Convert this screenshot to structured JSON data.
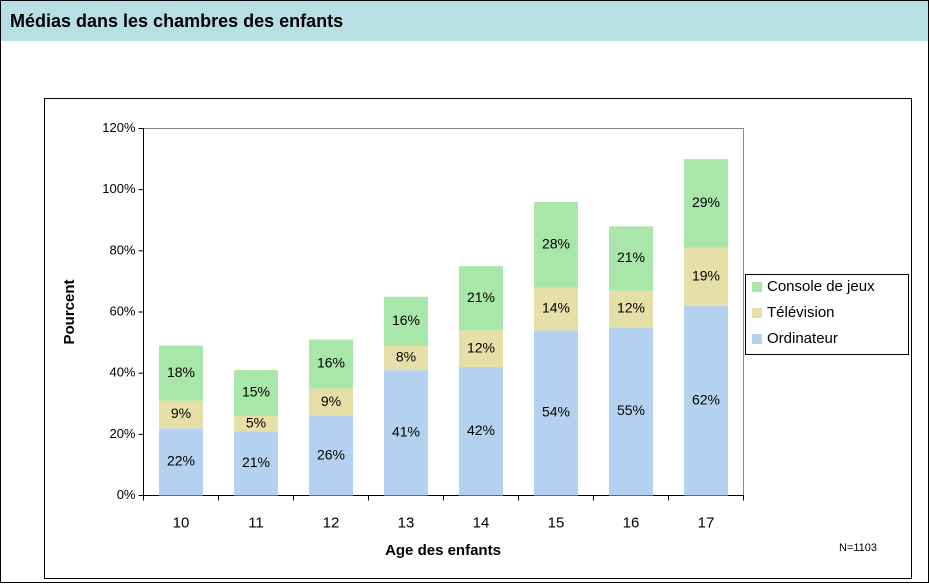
{
  "chart_data": {
    "type": "stacked_bar",
    "title": "Médias dans les chambres des enfants",
    "x_label": "Age des enfants",
    "y_label": "Pourcent",
    "annotation": "N=1103",
    "categories": [
      "10",
      "11",
      "12",
      "13",
      "14",
      "15",
      "16",
      "17"
    ],
    "series": [
      {
        "name": "Ordinateur",
        "color": "#b4d2ef",
        "values": [
          22,
          21,
          26,
          41,
          42,
          54,
          55,
          62
        ],
        "value_labels": [
          "22%",
          "21%",
          "26%",
          "41%",
          "42%",
          "54%",
          "55%",
          "62%"
        ]
      },
      {
        "name": "Télévision",
        "color": "#e6e0a8",
        "values": [
          9,
          5,
          9,
          8,
          12,
          14,
          12,
          19
        ],
        "value_labels": [
          "9%",
          "5%",
          "9%",
          "8%",
          "12%",
          "14%",
          "12%",
          "19%"
        ]
      },
      {
        "name": "Console de jeux",
        "color": "#a9e6a9",
        "values": [
          18,
          15,
          16,
          16,
          21,
          28,
          21,
          29
        ],
        "value_labels": [
          "18%",
          "15%",
          "16%",
          "16%",
          "21%",
          "28%",
          "21%",
          "29%"
        ]
      }
    ],
    "ylim": [
      0,
      120
    ],
    "yticks": [
      {
        "value": 0,
        "label": "0%"
      },
      {
        "value": 20,
        "label": "20%"
      },
      {
        "value": 40,
        "label": "40%"
      },
      {
        "value": 60,
        "label": "60%"
      },
      {
        "value": 80,
        "label": "80%"
      },
      {
        "value": 100,
        "label": "100%"
      },
      {
        "value": 120,
        "label": "120%"
      }
    ],
    "legend": "right"
  }
}
